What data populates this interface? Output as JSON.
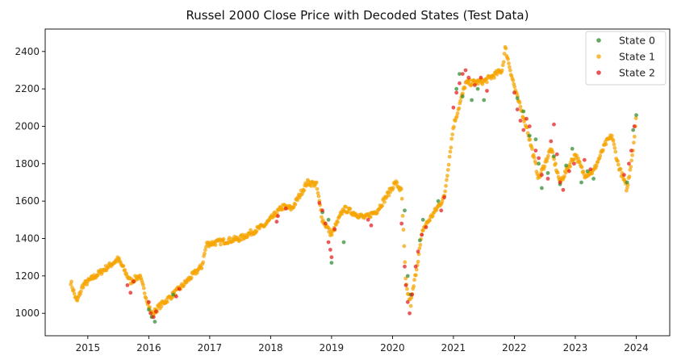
{
  "chart_data": {
    "type": "scatter",
    "title": "Russel 2000 Close Price with Decoded States (Test Data)",
    "xlabel": "",
    "ylabel": "",
    "xlim": [
      2014.3,
      2024.55
    ],
    "ylim": [
      880,
      2520
    ],
    "x_ticks": [
      2015,
      2016,
      2017,
      2018,
      2019,
      2020,
      2021,
      2022,
      2023,
      2024
    ],
    "x_tick_labels": [
      "2015",
      "2016",
      "2017",
      "2018",
      "2019",
      "2020",
      "2021",
      "2022",
      "2023",
      "2024"
    ],
    "y_ticks": [
      1000,
      1200,
      1400,
      1600,
      1800,
      2000,
      2200,
      2400
    ],
    "y_tick_labels": [
      "1000",
      "1200",
      "1400",
      "1600",
      "1800",
      "2000",
      "2200",
      "2400"
    ],
    "grid": false,
    "legend_position": "top-right",
    "series": [
      {
        "name": "State 0",
        "color": "#2e8b2e",
        "points": [
          [
            2016.0,
            1020
          ],
          [
            2016.05,
            980
          ],
          [
            2016.1,
            955
          ],
          [
            2016.4,
            1100
          ],
          [
            2018.85,
            1540
          ],
          [
            2018.95,
            1500
          ],
          [
            2019.0,
            1270
          ],
          [
            2019.2,
            1380
          ],
          [
            2020.2,
            1550
          ],
          [
            2020.25,
            1200
          ],
          [
            2020.3,
            1100
          ],
          [
            2020.45,
            1390
          ],
          [
            2020.5,
            1500
          ],
          [
            2020.75,
            1600
          ],
          [
            2021.05,
            2200
          ],
          [
            2021.1,
            2280
          ],
          [
            2021.15,
            2160
          ],
          [
            2021.3,
            2140
          ],
          [
            2021.4,
            2200
          ],
          [
            2021.5,
            2140
          ],
          [
            2022.05,
            2150
          ],
          [
            2022.15,
            2080
          ],
          [
            2022.25,
            1950
          ],
          [
            2022.35,
            1930
          ],
          [
            2022.4,
            1800
          ],
          [
            2022.45,
            1670
          ],
          [
            2022.55,
            1750
          ],
          [
            2022.65,
            1840
          ],
          [
            2022.75,
            1690
          ],
          [
            2022.85,
            1790
          ],
          [
            2022.95,
            1880
          ],
          [
            2023.1,
            1700
          ],
          [
            2023.2,
            1760
          ],
          [
            2023.3,
            1720
          ],
          [
            2023.85,
            1700
          ],
          [
            2023.95,
            1980
          ],
          [
            2024.0,
            2060
          ]
        ]
      },
      {
        "name": "State 1",
        "color": "#f5a400",
        "points": []
      },
      {
        "name": "State 2",
        "color": "#e31a1c",
        "points": [
          [
            2015.65,
            1150
          ],
          [
            2015.7,
            1110
          ],
          [
            2015.75,
            1170
          ],
          [
            2016.0,
            1060
          ],
          [
            2016.03,
            1000
          ],
          [
            2016.08,
            980
          ],
          [
            2016.12,
            1010
          ],
          [
            2016.45,
            1090
          ],
          [
            2016.5,
            1130
          ],
          [
            2018.1,
            1490
          ],
          [
            2018.12,
            1520
          ],
          [
            2018.25,
            1560
          ],
          [
            2018.8,
            1590
          ],
          [
            2018.85,
            1550
          ],
          [
            2018.9,
            1480
          ],
          [
            2018.95,
            1380
          ],
          [
            2018.98,
            1340
          ],
          [
            2019.0,
            1300
          ],
          [
            2019.05,
            1450
          ],
          [
            2019.6,
            1500
          ],
          [
            2019.65,
            1470
          ],
          [
            2020.15,
            1480
          ],
          [
            2020.2,
            1250
          ],
          [
            2020.22,
            1150
          ],
          [
            2020.25,
            1060
          ],
          [
            2020.28,
            1000
          ],
          [
            2020.32,
            1100
          ],
          [
            2020.38,
            1250
          ],
          [
            2020.42,
            1330
          ],
          [
            2020.48,
            1420
          ],
          [
            2020.55,
            1460
          ],
          [
            2020.8,
            1550
          ],
          [
            2020.85,
            1620
          ],
          [
            2021.0,
            2100
          ],
          [
            2021.05,
            2180
          ],
          [
            2021.1,
            2230
          ],
          [
            2021.15,
            2280
          ],
          [
            2021.2,
            2300
          ],
          [
            2021.25,
            2260
          ],
          [
            2021.35,
            2220
          ],
          [
            2021.45,
            2260
          ],
          [
            2021.55,
            2190
          ],
          [
            2022.0,
            2180
          ],
          [
            2022.05,
            2090
          ],
          [
            2022.1,
            2030
          ],
          [
            2022.15,
            1980
          ],
          [
            2022.2,
            2040
          ],
          [
            2022.25,
            2000
          ],
          [
            2022.35,
            1870
          ],
          [
            2022.4,
            1830
          ],
          [
            2022.45,
            1740
          ],
          [
            2022.55,
            1720
          ],
          [
            2022.6,
            1920
          ],
          [
            2022.65,
            2010
          ],
          [
            2022.7,
            1850
          ],
          [
            2022.75,
            1700
          ],
          [
            2022.8,
            1660
          ],
          [
            2022.9,
            1760
          ],
          [
            2022.98,
            1800
          ],
          [
            2023.15,
            1820
          ],
          [
            2023.25,
            1770
          ],
          [
            2023.8,
            1740
          ],
          [
            2023.88,
            1800
          ],
          [
            2023.92,
            1870
          ],
          [
            2023.97,
            2000
          ]
        ]
      }
    ]
  }
}
